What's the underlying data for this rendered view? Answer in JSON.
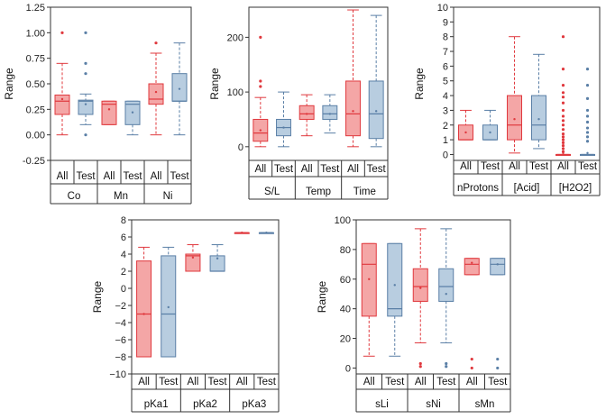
{
  "colors": {
    "all_fill": "#f4a6a6",
    "all_edge": "#e0393e",
    "test_fill": "#b8cde0",
    "test_edge": "#5a7fa6"
  },
  "chart_data": [
    {
      "id": "metals",
      "type": "boxplot",
      "ylabel": "Range",
      "ylim": [
        -0.25,
        1.25
      ],
      "yticks": [
        "-0.25",
        "0.00",
        "0.25",
        "0.50",
        "0.75",
        "1.00",
        "1.25"
      ],
      "tick_values": [
        -0.25,
        0,
        0.25,
        0.5,
        0.75,
        1.0,
        1.25
      ],
      "series_labels": [
        "All",
        "Test"
      ],
      "groups": [
        {
          "name": "Co",
          "boxes": [
            {
              "q1": 0.2,
              "med": 0.33,
              "q3": 0.39,
              "wlo": 0.0,
              "whi": 0.7,
              "mean": 0.35,
              "out": [
                1.0
              ]
            },
            {
              "q1": 0.2,
              "med": 0.33,
              "q3": 0.34,
              "wlo": 0.1,
              "whi": 0.4,
              "mean": 0.3,
              "out": [
                1.0,
                0.7,
                0.6,
                0.0
              ]
            }
          ]
        },
        {
          "name": "Mn",
          "boxes": [
            {
              "q1": 0.1,
              "med": 0.3,
              "q3": 0.33,
              "wlo": 0.1,
              "whi": 0.33,
              "mean": 0.25,
              "out": []
            },
            {
              "q1": 0.1,
              "med": 0.3,
              "q3": 0.33,
              "wlo": 0.0,
              "whi": 0.33,
              "mean": 0.22,
              "out": []
            }
          ]
        },
        {
          "name": "Ni",
          "boxes": [
            {
              "q1": 0.3,
              "med": 0.35,
              "q3": 0.5,
              "wlo": 0.0,
              "whi": 0.8,
              "mean": 0.42,
              "out": [
                0.9
              ]
            },
            {
              "q1": 0.33,
              "med": 0.33,
              "q3": 0.6,
              "wlo": 0.0,
              "whi": 0.9,
              "mean": 0.45,
              "out": []
            }
          ]
        }
      ]
    },
    {
      "id": "conditions",
      "type": "boxplot",
      "ylabel": "Range",
      "ylim": [
        -25,
        255
      ],
      "yticks": [
        "0",
        "100",
        "200"
      ],
      "tick_values": [
        0,
        100,
        200
      ],
      "series_labels": [
        "All",
        "Test"
      ],
      "groups": [
        {
          "name": "S/L",
          "boxes": [
            {
              "q1": 10,
              "med": 25,
              "q3": 50,
              "wlo": 0,
              "whi": 90,
              "mean": 30,
              "out": [
                120,
                110,
                200
              ]
            },
            {
              "q1": 20,
              "med": 35,
              "q3": 50,
              "wlo": 0,
              "whi": 100,
              "mean": 35,
              "out": []
            }
          ]
        },
        {
          "name": "Temp",
          "boxes": [
            {
              "q1": 50,
              "med": 60,
              "q3": 75,
              "wlo": 20,
              "whi": 95,
              "mean": 60,
              "out": []
            },
            {
              "q1": 50,
              "med": 60,
              "q3": 75,
              "wlo": 25,
              "whi": 95,
              "mean": 60,
              "out": []
            }
          ]
        },
        {
          "name": "Time",
          "boxes": [
            {
              "q1": 20,
              "med": 60,
              "q3": 120,
              "wlo": 0,
              "whi": 250,
              "mean": 65,
              "out": []
            },
            {
              "q1": 15,
              "med": 60,
              "q3": 120,
              "wlo": 0,
              "whi": 240,
              "mean": 65,
              "out": []
            }
          ]
        }
      ]
    },
    {
      "id": "reagents",
      "type": "boxplot",
      "ylabel": "Range",
      "ylim": [
        -0.4,
        10
      ],
      "yticks": [
        "0",
        "1",
        "2",
        "3",
        "4",
        "5",
        "6",
        "7",
        "8",
        "9",
        "10"
      ],
      "tick_values": [
        0,
        1,
        2,
        3,
        4,
        5,
        6,
        7,
        8,
        9,
        10
      ],
      "series_labels": [
        "All",
        "Test"
      ],
      "groups": [
        {
          "name": "nProtons",
          "boxes": [
            {
              "q1": 1,
              "med": 1,
              "q3": 2,
              "wlo": 1,
              "whi": 3,
              "mean": 1.5,
              "out": []
            },
            {
              "q1": 1,
              "med": 1,
              "q3": 2,
              "wlo": 1,
              "whi": 3,
              "mean": 1.5,
              "out": []
            }
          ]
        },
        {
          "name": "[Acid]",
          "boxes": [
            {
              "q1": 1,
              "med": 2,
              "q3": 4,
              "wlo": 0.1,
              "whi": 8,
              "mean": 2.4,
              "out": []
            },
            {
              "q1": 1,
              "med": 2,
              "q3": 4,
              "wlo": 0.4,
              "whi": 6.8,
              "mean": 2.4,
              "out": []
            }
          ]
        },
        {
          "name": "[H2O2]",
          "boxes": [
            {
              "q1": 0,
              "med": 0,
              "q3": 0,
              "wlo": 0,
              "whi": 0,
              "mean": 0.1,
              "out": [
                8,
                5.8,
                4.7,
                4.2,
                3.9,
                3.5,
                3,
                2.6,
                2.3,
                2,
                1.7,
                1.4,
                1.2,
                1,
                0.8,
                0.6,
                0.4,
                0.2
              ]
            },
            {
              "q1": 0,
              "med": 0,
              "q3": 0,
              "wlo": 0,
              "whi": 0,
              "mean": 0.1,
              "out": [
                5.8,
                4.7,
                3.8,
                3,
                2.6,
                2.2,
                1.8,
                1.5,
                1.2,
                0.9
              ]
            }
          ]
        }
      ]
    },
    {
      "id": "pka",
      "type": "boxplot",
      "ylabel": "Range",
      "ylim": [
        -10,
        8
      ],
      "yticks": [
        "−10",
        "−8",
        "−6",
        "−4",
        "−2",
        "0",
        "2",
        "4",
        "6",
        "8"
      ],
      "tick_values": [
        -10,
        -8,
        -6,
        -4,
        -2,
        0,
        2,
        4,
        6,
        8
      ],
      "series_labels": [
        "All",
        "Test"
      ],
      "groups": [
        {
          "name": "pKa1",
          "boxes": [
            {
              "q1": -8,
              "med": -3,
              "q3": 3.2,
              "wlo": -8,
              "whi": 4.8,
              "mean": -3,
              "out": []
            },
            {
              "q1": -8,
              "med": -3,
              "q3": 3.8,
              "wlo": -8,
              "whi": 4.8,
              "mean": -2.2,
              "out": []
            }
          ]
        },
        {
          "name": "pKa2",
          "boxes": [
            {
              "q1": 2,
              "med": 3.8,
              "q3": 4,
              "wlo": 2,
              "whi": 5.1,
              "mean": 3.6,
              "out": []
            },
            {
              "q1": 2,
              "med": 2,
              "q3": 3.8,
              "wlo": 2,
              "whi": 5.1,
              "mean": 3.5,
              "out": []
            }
          ]
        },
        {
          "name": "pKa3",
          "boxes": [
            {
              "q1": 6.5,
              "med": 6.5,
              "q3": 6.5,
              "wlo": 6.5,
              "whi": 6.5,
              "mean": 6.5,
              "out": []
            },
            {
              "q1": 6.5,
              "med": 6.5,
              "q3": 6.5,
              "wlo": 6.5,
              "whi": 6.5,
              "mean": 6.5,
              "out": []
            }
          ]
        }
      ]
    },
    {
      "id": "selectivity",
      "type": "boxplot",
      "ylabel": "Range",
      "ylim": [
        -4,
        100
      ],
      "yticks": [
        "0",
        "20",
        "40",
        "60",
        "80",
        "100"
      ],
      "tick_values": [
        0,
        20,
        40,
        60,
        80,
        100
      ],
      "series_labels": [
        "All",
        "Test"
      ],
      "groups": [
        {
          "name": "sLi",
          "boxes": [
            {
              "q1": 35,
              "med": 70,
              "q3": 84,
              "wlo": 8,
              "whi": 84,
              "mean": 60,
              "out": []
            },
            {
              "q1": 35,
              "med": 40,
              "q3": 84,
              "wlo": 8,
              "whi": 84,
              "mean": 56,
              "out": []
            }
          ]
        },
        {
          "name": "sNi",
          "boxes": [
            {
              "q1": 45,
              "med": 55,
              "q3": 67,
              "wlo": 17,
              "whi": 94,
              "mean": 54,
              "out": [
                3,
                1
              ]
            },
            {
              "q1": 45,
              "med": 55,
              "q3": 67,
              "wlo": 17,
              "whi": 94,
              "mean": 50,
              "out": [
                3,
                1
              ]
            }
          ]
        },
        {
          "name": "sMn",
          "boxes": [
            {
              "q1": 63,
              "med": 70,
              "q3": 74,
              "wlo": 63,
              "whi": 74,
              "mean": 71,
              "out": [
                6,
                0
              ]
            },
            {
              "q1": 63,
              "med": 70,
              "q3": 74,
              "wlo": 63,
              "whi": 74,
              "mean": 70,
              "out": [
                6,
                0
              ]
            }
          ]
        }
      ]
    }
  ]
}
